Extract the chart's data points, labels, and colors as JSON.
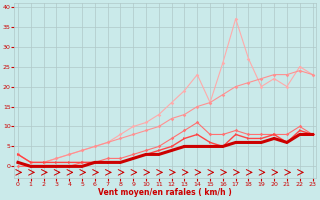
{
  "xlabel": "Vent moyen/en rafales ( km/h )",
  "x_values": [
    0,
    1,
    2,
    3,
    4,
    5,
    6,
    7,
    8,
    9,
    10,
    11,
    12,
    13,
    14,
    15,
    16,
    17,
    18,
    19,
    20,
    21,
    22,
    23
  ],
  "line_gust_peak": [
    3,
    1,
    1,
    2,
    3,
    4,
    5,
    6,
    8,
    10,
    11,
    13,
    16,
    19,
    23,
    16,
    26,
    37,
    27,
    20,
    22,
    20,
    25,
    23
  ],
  "line_trend_upper": [
    3,
    1,
    1,
    2,
    3,
    4,
    5,
    6,
    7,
    8,
    9,
    10,
    12,
    13,
    15,
    16,
    18,
    20,
    21,
    22,
    23,
    23,
    24,
    23
  ],
  "line_mid": [
    0,
    0,
    0,
    0,
    0,
    1,
    1,
    2,
    2,
    3,
    4,
    5,
    7,
    9,
    11,
    8,
    8,
    9,
    8,
    8,
    8,
    8,
    10,
    8
  ],
  "line_mean_jagged": [
    3,
    1,
    1,
    1,
    1,
    1,
    1,
    1,
    1,
    2,
    3,
    4,
    5,
    7,
    8,
    6,
    5,
    8,
    7,
    7,
    8,
    6,
    9,
    8
  ],
  "line_mean_smooth": [
    1,
    0,
    0,
    0,
    0,
    0,
    1,
    1,
    1,
    2,
    3,
    3,
    4,
    5,
    5,
    5,
    5,
    6,
    6,
    6,
    7,
    6,
    8,
    8
  ],
  "bg_color": "#caeaea",
  "grid_color": "#b0c8c8",
  "color_lightest": "#ffaaaa",
  "color_light": "#ff9090",
  "color_mid": "#ff7070",
  "color_dark": "#ff4444",
  "color_darkest": "#cc0000",
  "color_arrow": "#cc0000",
  "ylim": [
    -3,
    41
  ],
  "xlim": [
    -0.3,
    23.3
  ],
  "yticks": [
    0,
    5,
    10,
    15,
    20,
    25,
    30,
    35,
    40
  ],
  "xticks": [
    0,
    1,
    2,
    3,
    4,
    5,
    6,
    7,
    8,
    9,
    10,
    11,
    12,
    13,
    14,
    15,
    16,
    17,
    18,
    19,
    20,
    21,
    22,
    23
  ]
}
